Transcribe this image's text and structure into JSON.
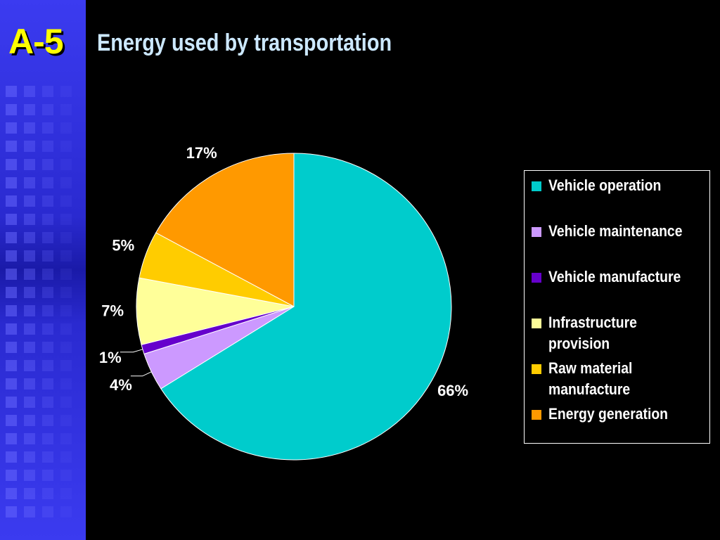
{
  "slide_label": "A-5",
  "chart_data": {
    "type": "pie",
    "title": "Energy used by transportation",
    "categories": [
      "Vehicle operation",
      "Vehicle maintenance",
      "Vehicle manufacture",
      "Infrastructure provision",
      "Raw material manufacture",
      "Energy generation"
    ],
    "values": [
      66,
      4,
      1,
      7,
      5,
      17
    ],
    "value_labels": [
      "66%",
      "4%",
      "1%",
      "7%",
      "5%",
      "17%"
    ],
    "colors": [
      "#00cccc",
      "#cc99ff",
      "#6600cc",
      "#ffff99",
      "#ffcc00",
      "#ff9900"
    ],
    "legend": "right"
  }
}
